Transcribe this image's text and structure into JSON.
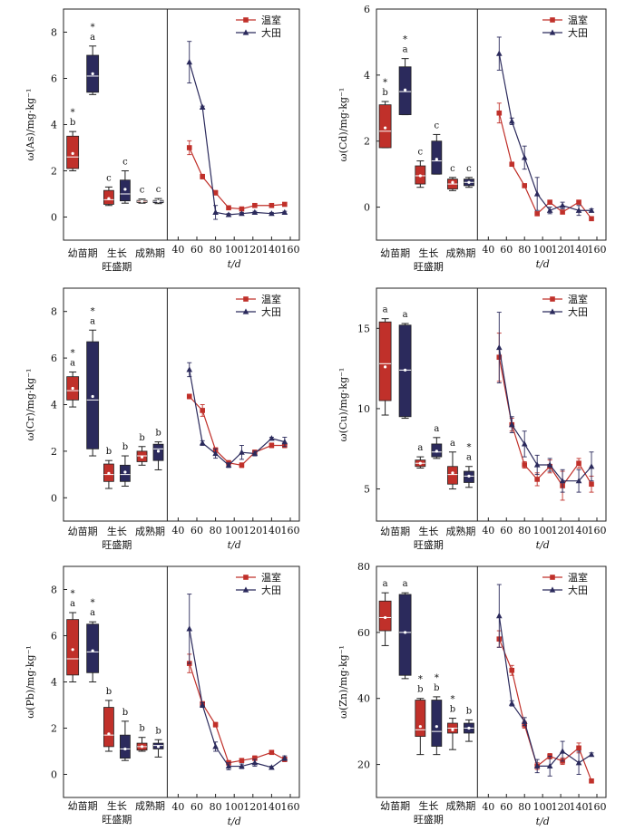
{
  "colors": {
    "greenhouse": "#c0302a",
    "field": "#2b2a5c"
  },
  "x_unit_label": "t/d",
  "x_ticks": [
    40,
    60,
    80,
    100,
    120,
    140,
    160
  ],
  "categories": [
    "幼苗期",
    "生长\n旺盛期",
    "成熟期"
  ],
  "legend": [
    "温室",
    "大田"
  ],
  "chart_data": [
    {
      "type": "box+line",
      "ylabel": "ω(As)/mg·kg⁻¹",
      "ylim": [
        -1,
        9
      ],
      "yticks": [
        0,
        2,
        4,
        6,
        8
      ],
      "boxes": [
        {
          "category": "幼苗期",
          "series": "温室",
          "min": 2.0,
          "q1": 2.1,
          "median": 2.6,
          "q3": 3.5,
          "max": 3.7,
          "mean": 2.75,
          "sig": [
            "*",
            "b"
          ]
        },
        {
          "category": "幼苗期",
          "series": "大田",
          "min": 5.3,
          "q1": 5.4,
          "median": 6.1,
          "q3": 7.0,
          "max": 7.4,
          "mean": 6.2,
          "sig": [
            "*",
            "a"
          ]
        },
        {
          "category": "生长旺盛期",
          "series": "温室",
          "min": 0.5,
          "q1": 0.55,
          "median": 0.75,
          "q3": 1.15,
          "max": 1.3,
          "mean": 0.8,
          "sig": [
            "c"
          ]
        },
        {
          "category": "生长旺盛期",
          "series": "大田",
          "min": 0.6,
          "q1": 0.7,
          "median": 1.0,
          "q3": 1.6,
          "max": 2.0,
          "mean": 1.2,
          "sig": [
            "c"
          ]
        },
        {
          "category": "成熟期",
          "series": "温室",
          "min": 0.6,
          "q1": 0.63,
          "median": 0.68,
          "q3": 0.72,
          "max": 0.78,
          "mean": 0.68,
          "sig": [
            "c"
          ]
        },
        {
          "category": "成熟期",
          "series": "大田",
          "min": 0.58,
          "q1": 0.62,
          "median": 0.68,
          "q3": 0.72,
          "max": 0.8,
          "mean": 0.68,
          "sig": [
            "c"
          ]
        }
      ],
      "lines": [
        {
          "name": "温室",
          "x": [
            52,
            66,
            80,
            94,
            108,
            122,
            140,
            154
          ],
          "y": [
            3.0,
            1.75,
            1.05,
            0.4,
            0.35,
            0.5,
            0.5,
            0.55
          ],
          "err": [
            0.3,
            0.1,
            0.1,
            0.05,
            0.05,
            0.05,
            0.05,
            0.05
          ]
        },
        {
          "name": "大田",
          "x": [
            52,
            66,
            80,
            94,
            108,
            122,
            140,
            154
          ],
          "y": [
            6.7,
            4.75,
            0.2,
            0.1,
            0.15,
            0.2,
            0.15,
            0.2
          ],
          "err": [
            0.9,
            0.05,
            0.3,
            0.05,
            0.05,
            0.05,
            0.05,
            0.05
          ]
        }
      ]
    },
    {
      "type": "box+line",
      "ylabel": "ω(Cd)/mg·kg⁻¹",
      "ylim": [
        -1,
        6
      ],
      "yticks": [
        0,
        2,
        4,
        6
      ],
      "boxes": [
        {
          "category": "幼苗期",
          "series": "温室",
          "min": 1.8,
          "q1": 1.8,
          "median": 2.3,
          "q3": 3.1,
          "max": 3.2,
          "mean": 2.4,
          "sig": [
            "*",
            "b"
          ]
        },
        {
          "category": "幼苗期",
          "series": "大田",
          "min": 2.8,
          "q1": 2.8,
          "median": 3.5,
          "q3": 4.25,
          "max": 4.5,
          "mean": 3.55,
          "sig": [
            "*",
            "a"
          ]
        },
        {
          "category": "生长旺盛期",
          "series": "温室",
          "min": 0.6,
          "q1": 0.7,
          "median": 0.95,
          "q3": 1.25,
          "max": 1.4,
          "mean": 0.95,
          "sig": [
            "c"
          ]
        },
        {
          "category": "生长旺盛期",
          "series": "大田",
          "min": 1.0,
          "q1": 1.0,
          "median": 1.4,
          "q3": 2.0,
          "max": 2.2,
          "mean": 1.45,
          "sig": [
            "c"
          ]
        },
        {
          "category": "成熟期",
          "series": "温室",
          "min": 0.5,
          "q1": 0.55,
          "median": 0.7,
          "q3": 0.85,
          "max": 0.9,
          "mean": 0.75,
          "sig": [
            "c"
          ]
        },
        {
          "category": "成熟期",
          "series": "大田",
          "min": 0.6,
          "q1": 0.65,
          "median": 0.75,
          "q3": 0.85,
          "max": 0.9,
          "mean": 0.75,
          "sig": [
            "c"
          ]
        }
      ],
      "lines": [
        {
          "name": "温室",
          "x": [
            52,
            66,
            80,
            94,
            108,
            122,
            140,
            154
          ],
          "y": [
            2.85,
            1.3,
            0.65,
            -0.2,
            0.15,
            -0.15,
            0.15,
            -0.35
          ],
          "err": [
            0.3,
            0.05,
            0.05,
            0.05,
            0.05,
            0.05,
            0.05,
            0.05
          ]
        },
        {
          "name": "大田",
          "x": [
            52,
            66,
            80,
            94,
            108,
            122,
            140,
            154
          ],
          "y": [
            4.65,
            2.6,
            1.5,
            0.4,
            -0.1,
            0.05,
            -0.1,
            -0.1
          ],
          "err": [
            0.5,
            0.1,
            0.35,
            0.5,
            0.1,
            0.1,
            0.15,
            0.05
          ]
        }
      ]
    },
    {
      "type": "box+line",
      "ylabel": "ω(Cr)/mg·kg⁻¹",
      "ylim": [
        -1,
        9
      ],
      "yticks": [
        0,
        2,
        4,
        6,
        8
      ],
      "boxes": [
        {
          "category": "幼苗期",
          "series": "温室",
          "min": 3.9,
          "q1": 4.2,
          "median": 4.6,
          "q3": 5.2,
          "max": 5.4,
          "mean": 4.7,
          "sig": [
            "*",
            "a"
          ]
        },
        {
          "category": "幼苗期",
          "series": "大田",
          "min": 1.8,
          "q1": 2.1,
          "median": 4.2,
          "q3": 6.7,
          "max": 7.2,
          "mean": 4.35,
          "sig": [
            "*",
            "a"
          ]
        },
        {
          "category": "生长旺盛期",
          "series": "温室",
          "min": 0.4,
          "q1": 0.7,
          "median": 1.0,
          "q3": 1.45,
          "max": 1.6,
          "mean": 1.05,
          "sig": [
            "b"
          ]
        },
        {
          "category": "生长旺盛期",
          "series": "大田",
          "min": 0.5,
          "q1": 0.7,
          "median": 1.0,
          "q3": 1.4,
          "max": 1.8,
          "mean": 1.1,
          "sig": [
            "b"
          ]
        },
        {
          "category": "成熟期",
          "series": "温室",
          "min": 1.4,
          "q1": 1.55,
          "median": 1.8,
          "q3": 2.0,
          "max": 2.2,
          "mean": 1.75,
          "sig": [
            "b"
          ]
        },
        {
          "category": "成熟期",
          "series": "大田",
          "min": 1.2,
          "q1": 1.6,
          "median": 2.1,
          "q3": 2.3,
          "max": 2.4,
          "mean": 2.0,
          "sig": [
            "b"
          ]
        }
      ],
      "lines": [
        {
          "name": "温室",
          "x": [
            52,
            66,
            80,
            94,
            108,
            122,
            140,
            154
          ],
          "y": [
            4.35,
            3.75,
            2.05,
            1.5,
            1.4,
            1.95,
            2.25,
            2.25
          ],
          "err": [
            0.1,
            0.25,
            0.1,
            0.1,
            0.1,
            0.1,
            0.1,
            0.1
          ]
        },
        {
          "name": "大田",
          "x": [
            52,
            66,
            80,
            94,
            108,
            122,
            140,
            154
          ],
          "y": [
            5.5,
            2.35,
            1.9,
            1.4,
            1.95,
            1.9,
            2.55,
            2.4
          ],
          "err": [
            0.3,
            0.1,
            0.2,
            0.1,
            0.3,
            0.1,
            0.05,
            0.2
          ]
        }
      ]
    },
    {
      "type": "box+line",
      "ylabel": "ω(Cu)/mg·kg⁻¹",
      "ylim": [
        3,
        17.5
      ],
      "yticks": [
        5,
        10,
        15
      ],
      "boxes": [
        {
          "category": "幼苗期",
          "series": "温室",
          "min": 9.6,
          "q1": 10.5,
          "median": 12.8,
          "q3": 15.4,
          "max": 15.6,
          "mean": 12.6,
          "sig": [
            "a"
          ]
        },
        {
          "category": "幼苗期",
          "series": "大田",
          "min": 9.4,
          "q1": 9.5,
          "median": 12.4,
          "q3": 15.2,
          "max": 15.3,
          "mean": 12.4,
          "sig": [
            "a"
          ]
        },
        {
          "category": "生长旺盛期",
          "series": "温室",
          "min": 6.3,
          "q1": 6.4,
          "median": 6.6,
          "q3": 6.8,
          "max": 7.0,
          "mean": 6.6,
          "sig": [
            "a"
          ]
        },
        {
          "category": "生长旺盛期",
          "series": "大田",
          "min": 6.9,
          "q1": 7.0,
          "median": 7.3,
          "q3": 7.8,
          "max": 8.2,
          "mean": 7.35,
          "sig": [
            "a"
          ]
        },
        {
          "category": "成熟期",
          "series": "温室",
          "min": 5.0,
          "q1": 5.3,
          "median": 5.9,
          "q3": 6.4,
          "max": 7.3,
          "mean": 6.0,
          "sig": [
            "a"
          ]
        },
        {
          "category": "成熟期",
          "series": "大田",
          "min": 5.1,
          "q1": 5.4,
          "median": 5.8,
          "q3": 6.1,
          "max": 6.4,
          "mean": 5.8,
          "sig": [
            "*",
            "a"
          ]
        }
      ],
      "lines": [
        {
          "name": "温室",
          "x": [
            52,
            66,
            80,
            94,
            108,
            122,
            140,
            154
          ],
          "y": [
            13.2,
            9.0,
            6.5,
            5.6,
            6.4,
            5.2,
            6.6,
            5.3
          ],
          "err": [
            1.5,
            0.4,
            0.2,
            0.4,
            0.4,
            0.9,
            0.3,
            0.5
          ]
        },
        {
          "name": "大田",
          "x": [
            52,
            66,
            80,
            94,
            108,
            122,
            140,
            154
          ],
          "y": [
            13.8,
            9.0,
            7.8,
            6.5,
            6.5,
            5.5,
            5.5,
            6.4
          ],
          "err": [
            2.2,
            0.5,
            0.8,
            0.6,
            0.4,
            0.7,
            0.7,
            0.9
          ]
        }
      ]
    },
    {
      "type": "box+line",
      "ylabel": "ω(Pb)/mg·kg⁻¹",
      "ylim": [
        -1,
        9
      ],
      "yticks": [
        0,
        2,
        4,
        6,
        8
      ],
      "boxes": [
        {
          "category": "幼苗期",
          "series": "温室",
          "min": 4.0,
          "q1": 4.3,
          "median": 5.0,
          "q3": 6.7,
          "max": 7.0,
          "mean": 5.4,
          "sig": [
            "*",
            "a"
          ]
        },
        {
          "category": "幼苗期",
          "series": "大田",
          "min": 4.0,
          "q1": 4.4,
          "median": 5.3,
          "q3": 6.5,
          "max": 6.6,
          "mean": 5.35,
          "sig": [
            "*",
            "a"
          ]
        },
        {
          "category": "生长旺盛期",
          "series": "温室",
          "min": 1.0,
          "q1": 1.2,
          "median": 1.7,
          "q3": 2.9,
          "max": 3.2,
          "mean": 1.75,
          "sig": [
            "b"
          ]
        },
        {
          "category": "生长旺盛期",
          "series": "大田",
          "min": 0.6,
          "q1": 0.7,
          "median": 1.1,
          "q3": 1.7,
          "max": 2.3,
          "mean": 1.1,
          "sig": [
            "b"
          ]
        },
        {
          "category": "成熟期",
          "series": "温室",
          "min": 1.0,
          "q1": 1.05,
          "median": 1.2,
          "q3": 1.35,
          "max": 1.6,
          "mean": 1.2,
          "sig": [
            "b"
          ]
        },
        {
          "category": "成熟期",
          "series": "大田",
          "min": 0.75,
          "q1": 1.1,
          "median": 1.25,
          "q3": 1.35,
          "max": 1.5,
          "mean": 1.2,
          "sig": [
            "b"
          ]
        }
      ],
      "lines": [
        {
          "name": "温室",
          "x": [
            52,
            66,
            80,
            94,
            108,
            122,
            140,
            154
          ],
          "y": [
            4.8,
            3.05,
            2.15,
            0.5,
            0.6,
            0.7,
            0.95,
            0.65
          ],
          "err": [
            0.4,
            0.1,
            0.1,
            0.1,
            0.05,
            0.1,
            0.05,
            0.1
          ]
        },
        {
          "name": "大田",
          "x": [
            52,
            66,
            80,
            94,
            108,
            122,
            140,
            154
          ],
          "y": [
            6.3,
            3.0,
            1.2,
            0.35,
            0.35,
            0.5,
            0.3,
            0.7
          ],
          "err": [
            1.5,
            0.1,
            0.2,
            0.15,
            0.1,
            0.15,
            0.05,
            0.1
          ]
        }
      ]
    },
    {
      "type": "box+line",
      "ylabel": "ω(Zn)/mg·kg⁻¹",
      "ylim": [
        10,
        80
      ],
      "yticks": [
        20,
        40,
        60,
        80
      ],
      "boxes": [
        {
          "category": "幼苗期",
          "series": "温室",
          "min": 56,
          "q1": 60.5,
          "median": 64.5,
          "q3": 69.5,
          "max": 72,
          "mean": 64.5,
          "sig": [
            "a"
          ]
        },
        {
          "category": "幼苗期",
          "series": "大田",
          "min": 46,
          "q1": 47,
          "median": 60,
          "q3": 71.5,
          "max": 72,
          "mean": 60,
          "sig": [
            "a"
          ]
        },
        {
          "category": "生长旺盛期",
          "series": "温室",
          "min": 23,
          "q1": 28.5,
          "median": 30.5,
          "q3": 39.5,
          "max": 40,
          "mean": 31.5,
          "sig": [
            "*",
            "b"
          ]
        },
        {
          "category": "生长旺盛期",
          "series": "大田",
          "min": 23,
          "q1": 25.5,
          "median": 30,
          "q3": 39.5,
          "max": 40.5,
          "mean": 31.5,
          "sig": [
            "*",
            "b"
          ]
        },
        {
          "category": "成熟期",
          "series": "温室",
          "min": 24.5,
          "q1": 29.5,
          "median": 31,
          "q3": 32.5,
          "max": 34,
          "mean": 30.5,
          "sig": [
            "*",
            "b"
          ]
        },
        {
          "category": "成熟期",
          "series": "大田",
          "min": 27,
          "q1": 29.5,
          "median": 31,
          "q3": 32.5,
          "max": 33.5,
          "mean": 31,
          "sig": [
            "b"
          ]
        }
      ],
      "lines": [
        {
          "name": "温室",
          "x": [
            52,
            66,
            80,
            94,
            108,
            122,
            140,
            154
          ],
          "y": [
            58,
            48.5,
            32,
            19.5,
            22.5,
            21,
            25,
            15
          ],
          "err": [
            2.5,
            1.5,
            1.0,
            1.0,
            0.8,
            1.0,
            1.5,
            0.5
          ]
        },
        {
          "name": "大田",
          "x": [
            52,
            66,
            80,
            94,
            108,
            122,
            140,
            154
          ],
          "y": [
            65,
            38.5,
            33,
            19.5,
            19.5,
            24,
            20.5,
            23
          ],
          "err": [
            9.5,
            0.8,
            1.2,
            2.0,
            3.0,
            3.0,
            3.5,
            0.5
          ]
        }
      ]
    }
  ]
}
